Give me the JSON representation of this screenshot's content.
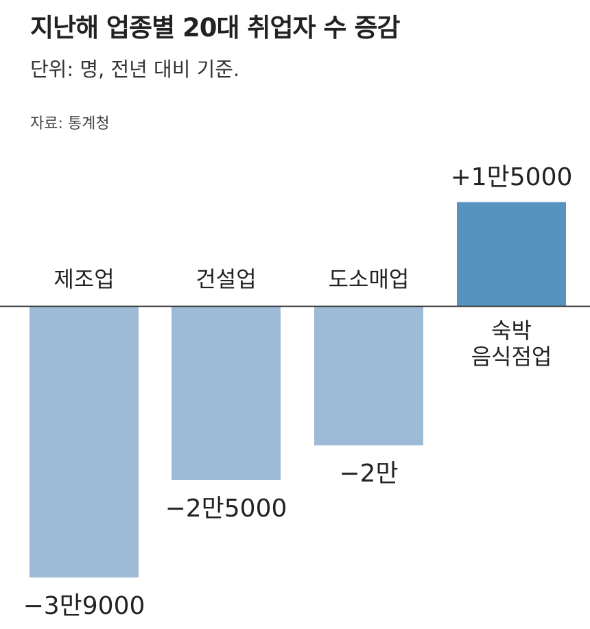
{
  "chart_data": {
    "type": "bar",
    "title": "지난해 업종별 20대 취업자 수 증감",
    "subtitle": "단위: 명, 전년 대비 기준.",
    "source": "자료: 통계청",
    "categories": [
      "제조업",
      "건설업",
      "도소매업",
      "숙박\n음식점업"
    ],
    "values": [
      -39000,
      -25000,
      -20000,
      15000
    ],
    "value_labels": [
      "−3만9000",
      "−2만5000",
      "−2만",
      "+1만5000"
    ],
    "colors": [
      "#9dbad6",
      "#9dbad6",
      "#9dbad6",
      "#5793bf"
    ],
    "ylim": [
      -40000,
      20000
    ]
  }
}
